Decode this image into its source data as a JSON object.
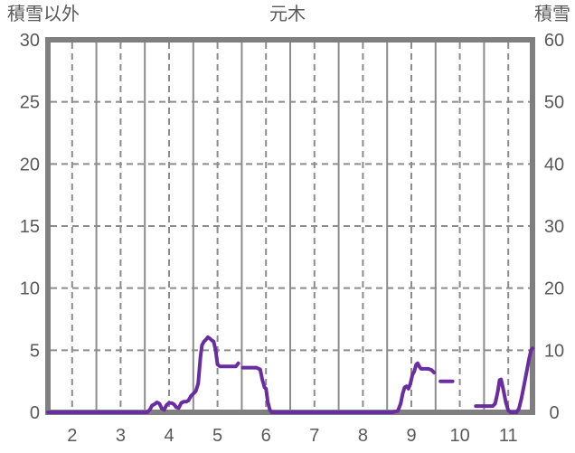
{
  "header": {
    "left_axis_title": "積雪以外",
    "title": "元木",
    "right_axis_title": "積雪"
  },
  "colors": {
    "background": "#FFFFFF",
    "line": "#6A2DA1",
    "grid": "#8C8C8C",
    "border": "#7F7F7F",
    "text": "#595959"
  },
  "chart_data": {
    "type": "line",
    "title": "元木",
    "legend": "none",
    "grid": true,
    "left_axis": {
      "title": "積雪以外",
      "min": 0,
      "max": 30,
      "ticks": [
        0,
        5,
        10,
        15,
        20,
        25,
        30
      ]
    },
    "right_axis": {
      "title": "積雪",
      "min": 0,
      "max": 60,
      "ticks": [
        0,
        10,
        20,
        30,
        40,
        50,
        60
      ]
    },
    "x_axis": {
      "min": 1.5,
      "max": 11.5,
      "ticks": [
        2,
        3,
        4,
        5,
        6,
        7,
        8,
        9,
        10,
        11
      ],
      "solid_lines": [
        2.5,
        3.5,
        4.5,
        5.5,
        6.5,
        7.5,
        8.5,
        9.5,
        10.5
      ]
    },
    "series": [
      {
        "name": "積雪",
        "axis": "right",
        "color": "#6A2DA1",
        "segments": [
          [
            [
              1.5,
              0
            ],
            [
              2.0,
              0
            ],
            [
              2.5,
              0
            ],
            [
              3.0,
              0
            ],
            [
              3.55,
              0
            ],
            [
              3.6,
              0.4
            ],
            [
              3.65,
              1.1
            ],
            [
              3.7,
              1.3
            ],
            [
              3.75,
              1.6
            ],
            [
              3.8,
              1.4
            ],
            [
              3.85,
              0.6
            ],
            [
              3.9,
              0.4
            ],
            [
              3.95,
              1.2
            ],
            [
              4.0,
              1.5
            ],
            [
              4.05,
              1.5
            ],
            [
              4.1,
              1.3
            ],
            [
              4.15,
              0.8
            ],
            [
              4.2,
              0.7
            ],
            [
              4.25,
              1.5
            ],
            [
              4.3,
              1.7
            ],
            [
              4.35,
              1.7
            ],
            [
              4.4,
              1.9
            ],
            [
              4.45,
              2.6
            ],
            [
              4.5,
              3.0
            ],
            [
              4.55,
              3.4
            ],
            [
              4.6,
              4.6
            ],
            [
              4.65,
              9.0
            ],
            [
              4.68,
              10.8
            ],
            [
              4.72,
              11.4
            ],
            [
              4.76,
              11.7
            ],
            [
              4.8,
              12.1
            ],
            [
              4.84,
              11.9
            ],
            [
              4.88,
              11.6
            ],
            [
              4.92,
              11.4
            ],
            [
              4.96,
              10.0
            ],
            [
              5.0,
              7.7
            ],
            [
              5.05,
              7.4
            ],
            [
              5.3,
              7.4
            ],
            [
              5.38,
              7.4
            ],
            [
              5.43,
              7.9
            ]
          ],
          [
            [
              5.52,
              7.2
            ],
            [
              5.8,
              7.2
            ],
            [
              5.88,
              6.9
            ],
            [
              5.92,
              5.4
            ],
            [
              5.97,
              4.0
            ],
            [
              6.0,
              3.8
            ],
            [
              6.04,
              1.6
            ],
            [
              6.08,
              0.4
            ],
            [
              6.12,
              0
            ],
            [
              6.5,
              0
            ],
            [
              7.0,
              0
            ],
            [
              7.5,
              0
            ],
            [
              8.0,
              0
            ],
            [
              8.6,
              0
            ],
            [
              8.72,
              0.2
            ],
            [
              8.78,
              1.4
            ],
            [
              8.82,
              3.0
            ],
            [
              8.86,
              4.0
            ],
            [
              8.9,
              4.2
            ],
            [
              8.94,
              3.8
            ],
            [
              8.98,
              4.6
            ],
            [
              9.02,
              6.0
            ],
            [
              9.06,
              6.6
            ],
            [
              9.1,
              7.7
            ],
            [
              9.13,
              7.9
            ],
            [
              9.17,
              7.3
            ],
            [
              9.2,
              7.0
            ],
            [
              9.35,
              7.0
            ],
            [
              9.42,
              6.8
            ],
            [
              9.47,
              6.4
            ]
          ],
          [
            [
              9.6,
              5.0
            ],
            [
              9.85,
              5.0
            ]
          ],
          [
            [
              10.33,
              1.0
            ],
            [
              10.68,
              1.0
            ],
            [
              10.73,
              1.4
            ],
            [
              10.78,
              3.2
            ],
            [
              10.82,
              5.2
            ],
            [
              10.85,
              5.3
            ],
            [
              10.9,
              3.6
            ],
            [
              10.95,
              1.6
            ],
            [
              11.0,
              0.3
            ],
            [
              11.05,
              0
            ],
            [
              11.17,
              0
            ],
            [
              11.22,
              0.6
            ],
            [
              11.27,
              2.2
            ],
            [
              11.32,
              4.2
            ],
            [
              11.38,
              6.6
            ],
            [
              11.43,
              8.6
            ],
            [
              11.47,
              10.0
            ],
            [
              11.5,
              10.3
            ]
          ]
        ]
      }
    ]
  }
}
